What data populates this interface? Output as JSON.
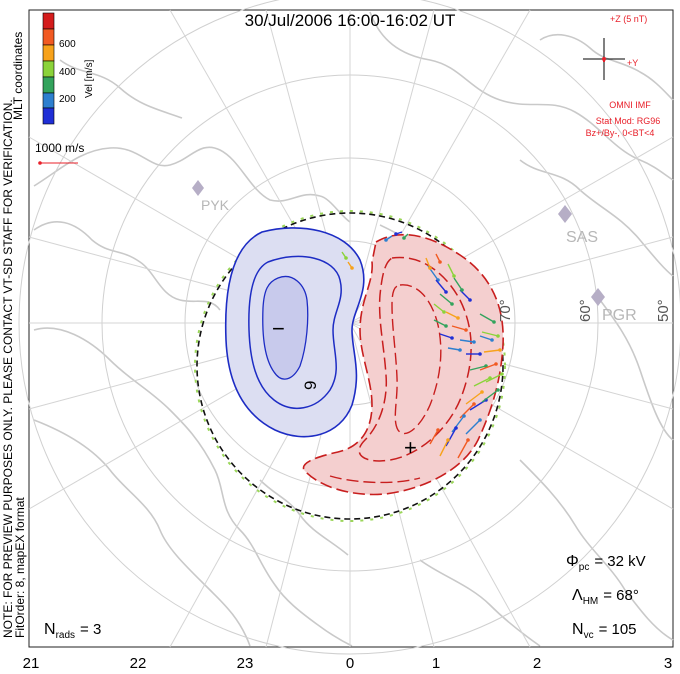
{
  "title": "30/Jul/2006 16:00-16:02 UT",
  "colorbar": {
    "label": "Vel [m/s]",
    "ticks": [
      "600",
      "400",
      "200"
    ],
    "colors": [
      "#d41c1c",
      "#f15a22",
      "#f7a21b",
      "#8bd33a",
      "#33a35c",
      "#2d7fcf",
      "#1f2fd6"
    ]
  },
  "mlt_coords_label": "MLT coordinates",
  "scale_label": "1000 m/s",
  "preview_note": "NOTE: FOR PREVIEW PURPOSES ONLY. PLEASE CONTACT VT-SD STAFF FOR VERIFICATION.",
  "fitorder_note": "FitOrder: 8, mapEX format",
  "imf": {
    "z_label": "+Z (5 nT)",
    "y_label": "+Y",
    "omni_label": "OMNI IMF",
    "stat_mod": "Stat Mod: RG96",
    "stat_cond": "Bz+/By-, 0<BT<4",
    "color": "#e8202a"
  },
  "stations": [
    "PYK",
    "SAS",
    "PGR"
  ],
  "latitude_labels": [
    "60°",
    "50°",
    "70°"
  ],
  "contour_label": "9",
  "neg_cell_symbol": "−",
  "pos_cell_symbol": "+",
  "stats": {
    "phi_pc": "Φpc = 32 kV",
    "phi_pc_sym": "Φ",
    "phi_pc_sub": "pc",
    "phi_pc_val": "= 32 kV",
    "lambda_sym": "Λ",
    "lambda_sub": "HM",
    "lambda_val": "= 68°",
    "nvc_sym": "N",
    "nvc_sub": "vc",
    "nvc_val": "= 105",
    "nrads_sym": "N",
    "nrads_sub": "rads",
    "nrads_val": "= 3"
  },
  "mlt_axis": [
    "21",
    "22",
    "23",
    "0",
    "1",
    "2",
    "3"
  ],
  "colors": {
    "neg_cell_fill": "#dcdef2",
    "neg_cell_line": "#1d2cc4",
    "pos_cell_fill": "#f4cfcf",
    "pos_cell_line": "#c81e1e",
    "coast": "#c7c7c7",
    "grid": "#cfcfcf",
    "station": "#b7aec7"
  }
}
